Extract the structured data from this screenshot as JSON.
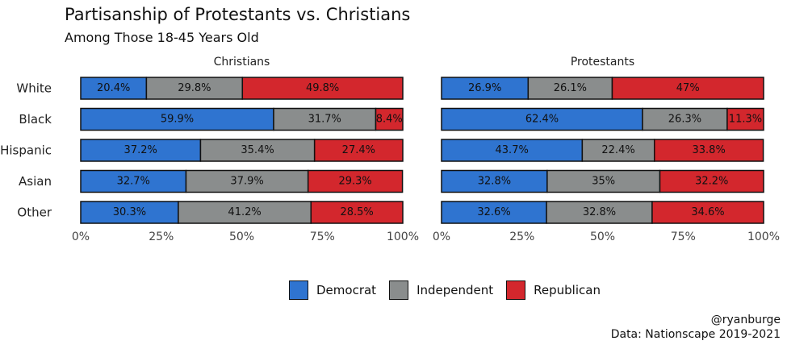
{
  "title": "Partisanship of Protestants vs. Christians",
  "subtitle": "Among Those 18-45 Years Old",
  "colors": {
    "Democrat": "#2f74d0",
    "Independent": "#8a8d8d",
    "Republican": "#d3272d"
  },
  "legend": [
    "Democrat",
    "Independent",
    "Republican"
  ],
  "caption": {
    "handle": "@ryanburge",
    "source": "Data: Nationscape 2019-2021"
  },
  "chart_data": {
    "type": "bar",
    "stacked": true,
    "orientation": "horizontal",
    "xlim": [
      0,
      100
    ],
    "x_ticks": [
      "0%",
      "25%",
      "50%",
      "75%",
      "100%"
    ],
    "legend_position": "bottom",
    "categories": [
      "White",
      "Black",
      "Hispanic",
      "Asian",
      "Other"
    ],
    "panels": [
      {
        "title": "Christians",
        "series": [
          {
            "name": "Democrat",
            "values": [
              20.4,
              59.9,
              37.2,
              32.7,
              30.3
            ],
            "labels": [
              "20.4%",
              "59.9%",
              "37.2%",
              "32.7%",
              "30.3%"
            ]
          },
          {
            "name": "Independent",
            "values": [
              29.8,
              31.7,
              35.4,
              37.9,
              41.2
            ],
            "labels": [
              "29.8%",
              "31.7%",
              "35.4%",
              "37.9%",
              "41.2%"
            ]
          },
          {
            "name": "Republican",
            "values": [
              49.8,
              8.4,
              27.4,
              29.3,
              28.5
            ],
            "labels": [
              "49.8%",
              "8.4%",
              "27.4%",
              "29.3%",
              "28.5%"
            ]
          }
        ]
      },
      {
        "title": "Protestants",
        "series": [
          {
            "name": "Democrat",
            "values": [
              26.9,
              62.4,
              43.7,
              32.8,
              32.6
            ],
            "labels": [
              "26.9%",
              "62.4%",
              "43.7%",
              "32.8%",
              "32.6%"
            ]
          },
          {
            "name": "Independent",
            "values": [
              26.1,
              26.3,
              22.4,
              35,
              32.8
            ],
            "labels": [
              "26.1%",
              "26.3%",
              "22.4%",
              "35%",
              "32.8%"
            ]
          },
          {
            "name": "Republican",
            "values": [
              47,
              11.3,
              33.8,
              32.2,
              34.6
            ],
            "labels": [
              "47%",
              "11.3%",
              "33.8%",
              "32.2%",
              "34.6%"
            ]
          }
        ]
      }
    ]
  }
}
